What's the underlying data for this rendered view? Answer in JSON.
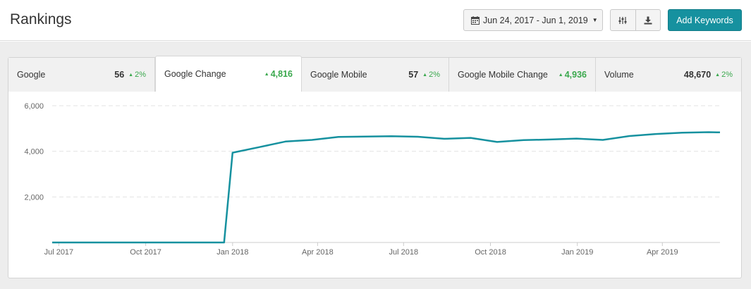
{
  "header": {
    "title": "Rankings",
    "date_range": "Jun 24, 2017 - Jun 1, 2019",
    "add_button": "Add Keywords"
  },
  "colors": {
    "accent": "#16919f",
    "positive": "#3aa84d"
  },
  "icons": [
    "calendar-icon",
    "caret-down-icon",
    "filter-sliders-icon",
    "download-icon"
  ],
  "tabs": [
    {
      "label": "Google",
      "value": "56",
      "change": "2%"
    },
    {
      "label": "Google Change",
      "value": "",
      "change": "4,816",
      "active": true
    },
    {
      "label": "Google Mobile",
      "value": "57",
      "change": "2%"
    },
    {
      "label": "Google Mobile Change",
      "value": "",
      "change": "4,936"
    },
    {
      "label": "Volume",
      "value": "48,670",
      "change": "2%"
    }
  ],
  "chart_data": {
    "type": "line",
    "series": [
      {
        "values": [
          [
            "2017-06-24",
            0
          ],
          [
            "2017-07-08",
            0
          ],
          [
            "2017-07-29",
            0
          ],
          [
            "2017-08-19",
            0
          ],
          [
            "2017-09-09",
            0
          ],
          [
            "2017-09-30",
            0
          ],
          [
            "2017-10-21",
            0
          ],
          [
            "2017-11-11",
            0
          ],
          [
            "2017-12-02",
            0
          ],
          [
            "2017-12-23",
            0
          ],
          [
            "2018-01-01",
            3940
          ],
          [
            "2018-01-29",
            4180
          ],
          [
            "2018-02-26",
            4430
          ],
          [
            "2018-03-26",
            4500
          ],
          [
            "2018-04-23",
            4630
          ],
          [
            "2018-05-21",
            4650
          ],
          [
            "2018-06-18",
            4660
          ],
          [
            "2018-07-16",
            4640
          ],
          [
            "2018-08-13",
            4550
          ],
          [
            "2018-09-10",
            4590
          ],
          [
            "2018-10-08",
            4410
          ],
          [
            "2018-11-05",
            4490
          ],
          [
            "2018-12-03",
            4520
          ],
          [
            "2018-12-31",
            4560
          ],
          [
            "2019-01-28",
            4500
          ],
          [
            "2019-02-25",
            4670
          ],
          [
            "2019-03-25",
            4760
          ],
          [
            "2019-04-22",
            4820
          ],
          [
            "2019-05-20",
            4840
          ],
          [
            "2019-06-01",
            4830
          ]
        ]
      }
    ],
    "y_ticks": [
      "6,000",
      "4,000",
      "2,000"
    ],
    "y_tick_values": [
      6000,
      4000,
      2000
    ],
    "ylim": [
      0,
      6000
    ],
    "x_ticks": [
      "Jul 2017",
      "Oct 2017",
      "Jan 2018",
      "Apr 2018",
      "Jul 2018",
      "Oct 2018",
      "Jan 2019",
      "Apr 2019"
    ],
    "x_tick_dates": [
      "2017-07-01",
      "2017-10-01",
      "2018-01-01",
      "2018-04-01",
      "2018-07-01",
      "2018-10-01",
      "2019-01-01",
      "2019-04-01"
    ],
    "xlim": [
      "2017-06-24",
      "2019-06-01"
    ],
    "grid": "horizontal dashed",
    "line_color": "#16919f"
  }
}
